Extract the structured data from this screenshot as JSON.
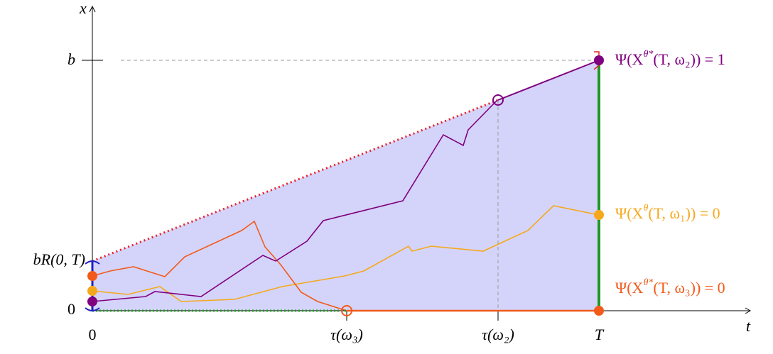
{
  "axes": {
    "y_label": "x",
    "x_label": "t"
  },
  "y_ticks": [
    "b",
    "bR(0, T)",
    "0"
  ],
  "x_ticks": [
    "0",
    "τ(ω₃)",
    "τ(ω₂)",
    "T"
  ],
  "annotations": [
    {
      "base": "Ψ(X",
      "sup": "θ*",
      "rest": "(T, ω₂)) = 1"
    },
    {
      "base": "Ψ(X",
      "sup": "θ",
      "rest": "(T, ω₁)) = 0"
    },
    {
      "base": "Ψ(X",
      "sup": "θ*",
      "rest": "(T, ω₃)) = 0"
    }
  ]
}
